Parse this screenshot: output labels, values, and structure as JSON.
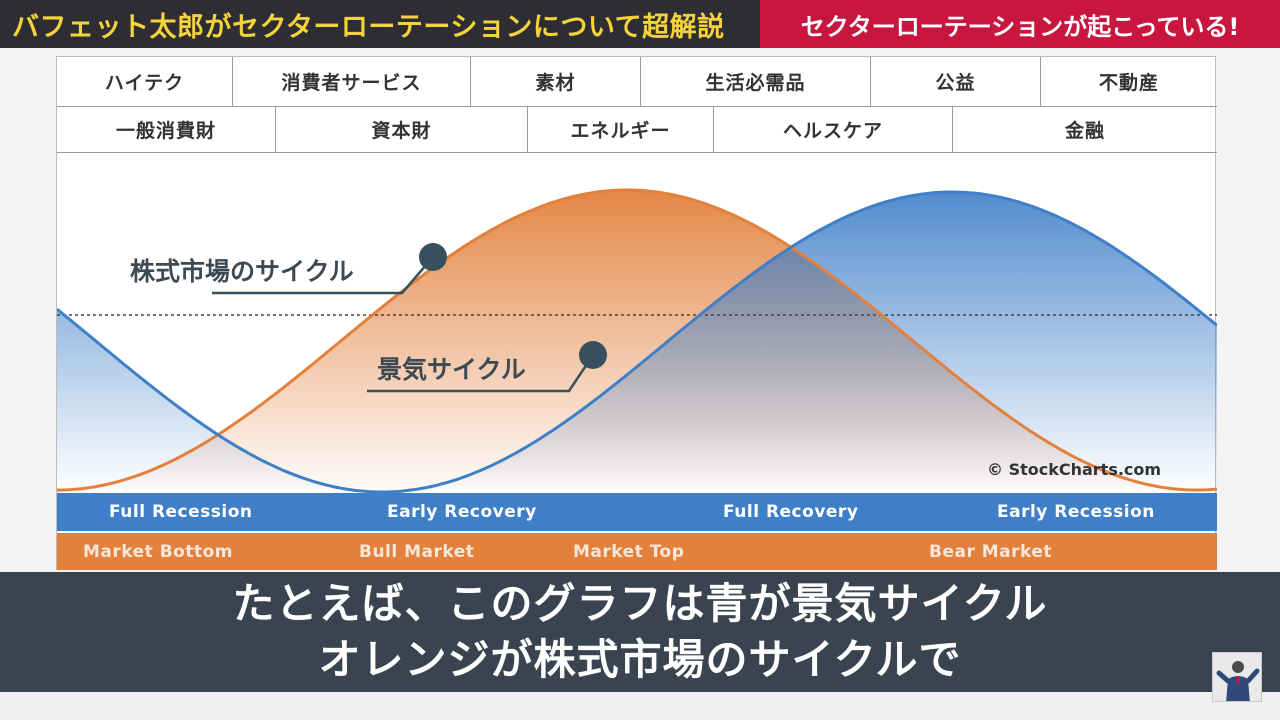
{
  "header": {
    "left_title": "バフェット太郎がセクターローテーションについて超解説",
    "right_title": "セクターローテーションが起こっている!"
  },
  "sectors": {
    "row1": [
      "ハイテク",
      "消費者サービス",
      "素材",
      "生活必需品",
      "公益",
      "不動産"
    ],
    "row2": [
      "一般消費財",
      "資本財",
      "エネルギー",
      "ヘルスケア",
      "金融"
    ]
  },
  "chart": {
    "market_cycle_label": "株式市場のサイクル",
    "economic_cycle_label": "景気サイクル",
    "credit": "© StockCharts.com"
  },
  "phases": {
    "economy": [
      "Full Recession",
      "Early Recovery",
      "Full Recovery",
      "Early Recession"
    ],
    "market": [
      "Market Bottom",
      "Bull Market",
      "Market Top",
      "Bear Market"
    ]
  },
  "subtitle": {
    "line1": "たとえば、このグラフは青が景気サイクル",
    "line2": "オレンジが株式市場のサイクルで"
  },
  "colors": {
    "header_dark": "#2d2d33",
    "header_yellow_text": "#f5d33a",
    "header_red": "#c8163f",
    "orange": "#e2803c",
    "blue": "#3f7fc8",
    "subtitle_bg": "#3a4350",
    "marker": "#37505b"
  },
  "icons": {
    "presenter": "presenter-thumbnail-icon"
  }
}
